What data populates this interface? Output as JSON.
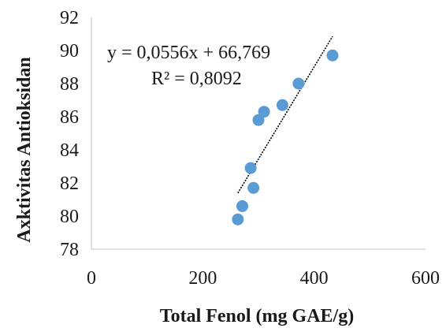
{
  "chart_data": {
    "type": "scatter",
    "title": "",
    "xlabel": "Total Fenol (mg GAE/g)",
    "ylabel": "Axktivitas Antioksidan",
    "xlim": [
      0,
      600
    ],
    "ylim": [
      78,
      92
    ],
    "xticks": [
      0,
      200,
      400,
      600
    ],
    "yticks": [
      78,
      80,
      82,
      84,
      86,
      88,
      90,
      92
    ],
    "xtick_labels": [
      "0",
      "200",
      "400",
      "600"
    ],
    "ytick_labels": [
      "78",
      "80",
      "82",
      "84",
      "86",
      "88",
      "90",
      "92"
    ],
    "grid": false,
    "legend": "none",
    "series": [
      {
        "x": [
          263,
          271,
          286,
          291,
          300,
          310,
          343,
          372,
          433
        ],
        "y": [
          79.8,
          80.6,
          82.9,
          81.7,
          85.8,
          86.3,
          86.7,
          88.0,
          89.7
        ],
        "color": "#5b9bd5",
        "marker": "circle"
      }
    ],
    "trendline": {
      "type": "linear",
      "slope": 0.0556,
      "intercept": 66.769,
      "x_range": [
        263,
        433
      ],
      "color": "#000000",
      "style": "dotted"
    },
    "annotations": {
      "equation": "y = 0,0556x + 66,769",
      "r_squared": "R² = 0,8092"
    }
  }
}
